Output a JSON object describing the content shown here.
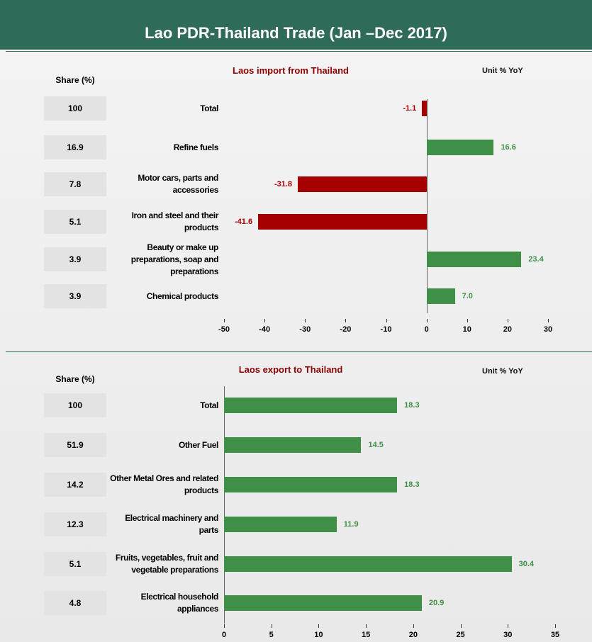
{
  "header": {
    "title": "Lao PDR-Thailand Trade  (Jan –Dec 2017)"
  },
  "chart_data": [
    {
      "type": "bar",
      "orientation": "horizontal",
      "title": "Laos import from Thailand",
      "unit": "Unit % YoY",
      "share_label": "Share (%)",
      "shares": [
        "100",
        "16.9",
        "7.8",
        "5.1",
        "3.9",
        "3.9"
      ],
      "categories": [
        "Total",
        "Refine fuels",
        "Motor cars, parts and accessories",
        "Iron and steel and their products",
        "Beauty or make up preparations, soap and preparations",
        "Chemical products"
      ],
      "values": [
        -1.1,
        16.6,
        -31.8,
        -41.6,
        23.4,
        7.0
      ],
      "value_labels": [
        "-1.1",
        "16.6",
        "-31.8",
        "-41.6",
        "23.4",
        "7.0"
      ],
      "colors": [
        "#a50000",
        "#3f8f46",
        "#a50000",
        "#a50000",
        "#3f8f46",
        "#3f8f46"
      ],
      "xlim": [
        -50,
        30
      ],
      "xticks": [
        -50,
        -40,
        -30,
        -20,
        -10,
        0,
        10,
        20,
        30
      ]
    },
    {
      "type": "bar",
      "orientation": "horizontal",
      "title": "Laos export to Thailand",
      "unit": "Unit % YoY",
      "share_label": "Share (%)",
      "shares": [
        "100",
        "51.9",
        "14.2",
        "12.3",
        "5.1",
        "4.8"
      ],
      "categories": [
        "Total",
        "Other Fuel",
        "Other Metal Ores and related products",
        "Electrical machinery and parts",
        "Fruits, vegetables, fruit and vegetable preparations",
        "Electrical household appliances"
      ],
      "values": [
        18.3,
        14.5,
        18.3,
        11.9,
        30.4,
        20.9
      ],
      "value_labels": [
        "18.3",
        "14.5",
        "18.3",
        "11.9",
        "30.4",
        "20.9"
      ],
      "colors": [
        "#3f8f46",
        "#3f8f46",
        "#3f8f46",
        "#3f8f46",
        "#3f8f46",
        "#3f8f46"
      ],
      "xlim": [
        0,
        35
      ],
      "xticks": [
        0,
        5,
        10,
        15,
        20,
        25,
        30,
        35
      ]
    }
  ]
}
